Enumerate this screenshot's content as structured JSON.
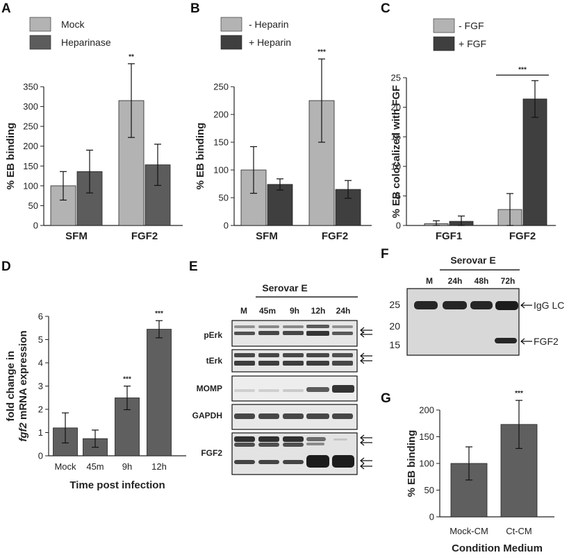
{
  "colors": {
    "light_bar": "#b3b3b3",
    "dark_bar": "#4d4d4d",
    "mid_bar": "#5f5f5f",
    "axis": "#222222",
    "blot_bg": "#d6d6d6",
    "band": "#1c1c1c"
  },
  "chart_data": [
    {
      "panel": "A",
      "type": "bar",
      "categories": [
        "SFM",
        "FGF2"
      ],
      "series": [
        {
          "name": "Mock",
          "values": [
            100,
            315
          ],
          "errors": [
            36,
            93
          ],
          "color": "#b3b3b3"
        },
        {
          "name": "Heparinase",
          "values": [
            136,
            153
          ],
          "errors": [
            54,
            52
          ],
          "color": "#5c5c5c"
        }
      ],
      "ylabel": "% EB binding",
      "ylim": [
        0,
        350
      ],
      "yticks": [
        "0",
        "50",
        "100",
        "150",
        "200",
        "250",
        "300",
        "350"
      ],
      "annotations": [
        {
          "text": "**",
          "category": 1,
          "series": 0
        }
      ],
      "legend_position": "top-left"
    },
    {
      "panel": "B",
      "type": "bar",
      "categories": [
        "SFM",
        "FGF2"
      ],
      "series": [
        {
          "name": "- Heparin",
          "values": [
            100,
            225
          ],
          "errors": [
            42,
            75
          ],
          "color": "#b3b3b3"
        },
        {
          "name": "+ Heparin",
          "values": [
            74,
            65
          ],
          "errors": [
            10,
            16
          ],
          "color": "#3f3f3f"
        }
      ],
      "ylabel": "% EB binding",
      "ylim": [
        0,
        250
      ],
      "yticks": [
        "0",
        "50",
        "100",
        "150",
        "200",
        "250"
      ],
      "annotations": [
        {
          "text": "***",
          "category": 1,
          "series": 0
        }
      ],
      "legend_position": "top-left"
    },
    {
      "panel": "C",
      "type": "bar",
      "categories": [
        "FGF1",
        "FGF2"
      ],
      "series": [
        {
          "name": "- FGF",
          "values": [
            0.3,
            2.7
          ],
          "errors": [
            0.5,
            2.7
          ],
          "color": "#b3b3b3"
        },
        {
          "name": "+ FGF",
          "values": [
            0.7,
            21.4
          ],
          "errors": [
            0.9,
            3.1
          ],
          "color": "#3f3f3f"
        }
      ],
      "ylabel": "% EB colocalized with FGF",
      "ylim": [
        0,
        25
      ],
      "yticks": [
        "0",
        "5",
        "10",
        "15",
        "20",
        "25"
      ],
      "annotations": [
        {
          "text": "***",
          "category": 1,
          "series": -1
        }
      ],
      "legend_position": "top"
    },
    {
      "panel": "D",
      "type": "bar",
      "categories": [
        "Mock",
        "45m",
        "9h",
        "12h"
      ],
      "series": [
        {
          "name": "",
          "values": [
            1.3,
            0.8,
            2.7,
            5.9
          ],
          "errors": [
            0.7,
            0.4,
            0.55,
            0.4
          ],
          "color": "#5f5f5f"
        }
      ],
      "ylabel_line1": "fold change in",
      "ylabel_line2_italic": "fgf2",
      "ylabel_line2_rest": " mRNA expression",
      "xlabel": "Time post infection",
      "ylim": [
        0,
        6.5
      ],
      "yticks": [
        "0",
        "1",
        "2",
        "3",
        "4",
        "5",
        "6"
      ],
      "annotations": [
        {
          "text": "***",
          "category": 2,
          "series": 0
        },
        {
          "text": "***",
          "category": 3,
          "series": 0
        }
      ]
    },
    {
      "panel": "G",
      "type": "bar",
      "categories": [
        "Mock-CM",
        "Ct-CM"
      ],
      "series": [
        {
          "name": "",
          "values": [
            100,
            173
          ],
          "errors": [
            31,
            45
          ],
          "color": "#5f5f5f"
        }
      ],
      "ylabel": "% EB binding",
      "xlabel": "Condition Medium",
      "ylim": [
        0,
        200
      ],
      "yticks": [
        "0",
        "50",
        "100",
        "150",
        "200"
      ],
      "annotations": [
        {
          "text": "***",
          "category": 1,
          "series": 0
        }
      ]
    }
  ],
  "blots": {
    "E": {
      "header": "Serovar E",
      "lanes": [
        "M",
        "45m",
        "9h",
        "12h",
        "24h"
      ],
      "rows": [
        "pErk",
        "tErk",
        "MOMP",
        "GAPDH",
        "FGF2"
      ]
    },
    "F": {
      "header": "Serovar E",
      "lanes": [
        "M",
        "24h",
        "48h",
        "72h"
      ],
      "markers": [
        "25",
        "20",
        "15"
      ],
      "labels": [
        "IgG LC",
        "FGF2"
      ]
    }
  },
  "panels": {
    "A": "A",
    "B": "B",
    "C": "C",
    "D": "D",
    "E": "E",
    "F": "F",
    "G": "G"
  }
}
